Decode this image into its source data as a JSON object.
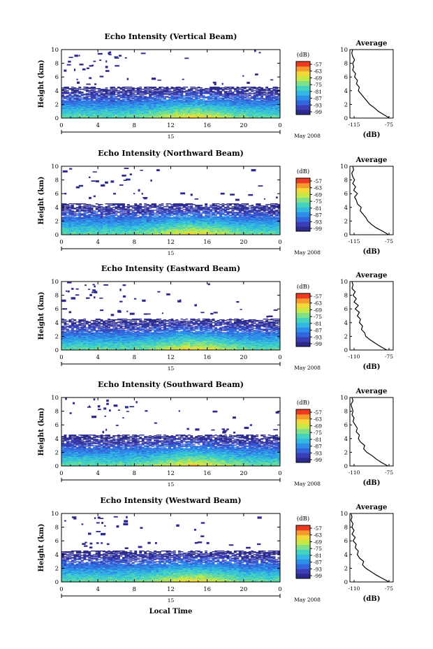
{
  "colors": {
    "scale": [
      "#2c2a8c",
      "#3a3fb5",
      "#3366dd",
      "#2f8fe8",
      "#33b8e0",
      "#45d3c0",
      "#7fe08a",
      "#c6e84a",
      "#f2d83a",
      "#f59a2e",
      "#ee3a22"
    ]
  },
  "shared": {
    "date_label": "May 2008",
    "day_label": "15",
    "x_label": "Local Time",
    "y_label": "Height (km)",
    "colorbar_unit": "(dB)",
    "avg_title": "Average",
    "avg_xlabel": "(dB)"
  },
  "chart_data": [
    {
      "type": "heatmap",
      "title": "Echo Intensity (Vertical Beam)",
      "xlabel": "Local Time",
      "ylabel": "Height (km)",
      "x_ticks": [
        "0",
        "4",
        "8",
        "12",
        "16",
        "20",
        "0"
      ],
      "xlim": [
        0,
        24
      ],
      "ylim": [
        0,
        10
      ],
      "y_ticks": [
        "0",
        "2",
        "4",
        "6",
        "8",
        "10"
      ],
      "colorbar_ticks": [
        "-57",
        "-63",
        "-69",
        "-75",
        "-81",
        "-87",
        "-93",
        "-99"
      ],
      "colorbar_unit": "(dB)",
      "average_profile": {
        "title": "Average",
        "xlabel": "(dB)",
        "x_ticks": [
          "-115",
          "-75"
        ],
        "xlim": [
          -118,
          -72
        ],
        "y_ticks": [
          "0",
          "2",
          "4",
          "6",
          "8",
          "10"
        ],
        "height_km": [
          0,
          0.5,
          1,
          1.5,
          2,
          2.5,
          3,
          3.5,
          4,
          4.5,
          5,
          5.5,
          6,
          6.5,
          7,
          7.5,
          8,
          8.5,
          9,
          9.5,
          10
        ],
        "db": [
          -76,
          -82,
          -88,
          -92,
          -97,
          -100,
          -103,
          -106,
          -109,
          -108,
          -111,
          -110,
          -113,
          -112,
          -115,
          -114,
          -115,
          -113,
          -115,
          -116,
          -115
        ]
      }
    },
    {
      "type": "heatmap",
      "title": "Echo Intensity (Northward Beam)",
      "xlabel": "Local Time",
      "ylabel": "Height (km)",
      "x_ticks": [
        "0",
        "4",
        "8",
        "12",
        "16",
        "20",
        "0"
      ],
      "xlim": [
        0,
        24
      ],
      "ylim": [
        0,
        10
      ],
      "y_ticks": [
        "0",
        "2",
        "4",
        "6",
        "8",
        "10"
      ],
      "colorbar_ticks": [
        "-57",
        "-63",
        "-69",
        "-75",
        "-81",
        "-87",
        "-93",
        "-99"
      ],
      "colorbar_unit": "(dB)",
      "average_profile": {
        "title": "Average",
        "xlabel": "(dB)",
        "x_ticks": [
          "-115",
          "-75"
        ],
        "xlim": [
          -118,
          -72
        ],
        "y_ticks": [
          "0",
          "2",
          "4",
          "6",
          "8",
          "10"
        ],
        "height_km": [
          0,
          0.5,
          1,
          1.5,
          2,
          2.5,
          3,
          3.5,
          4,
          4.5,
          5,
          5.5,
          6,
          6.5,
          7,
          7.5,
          8,
          8.5,
          9,
          9.5,
          10
        ],
        "db": [
          -77,
          -83,
          -90,
          -95,
          -99,
          -101,
          -104,
          -107,
          -106,
          -110,
          -111,
          -113,
          -110,
          -114,
          -112,
          -115,
          -113,
          -115,
          -116,
          -114,
          -115
        ]
      }
    },
    {
      "type": "heatmap",
      "title": "Echo Intensity (Eastward Beam)",
      "xlabel": "Local Time",
      "ylabel": "Height (km)",
      "x_ticks": [
        "0",
        "4",
        "8",
        "12",
        "16",
        "20",
        "0"
      ],
      "xlim": [
        0,
        24
      ],
      "ylim": [
        0,
        10
      ],
      "y_ticks": [
        "0",
        "2",
        "4",
        "6",
        "8",
        "10"
      ],
      "colorbar_ticks": [
        "-57",
        "-63",
        "-69",
        "-75",
        "-81",
        "-87",
        "-93",
        "-99"
      ],
      "colorbar_unit": "(dB)",
      "average_profile": {
        "title": "Average",
        "xlabel": "(dB)",
        "x_ticks": [
          "-110",
          "-75"
        ],
        "xlim": [
          -113,
          -72
        ],
        "y_ticks": [
          "0",
          "2",
          "4",
          "6",
          "8",
          "10"
        ],
        "height_km": [
          0,
          0.5,
          1,
          1.5,
          2,
          2.5,
          3,
          3.5,
          4,
          4.5,
          5,
          5.5,
          6,
          6.5,
          7,
          7.5,
          8,
          8.5,
          9,
          9.5,
          10
        ],
        "db": [
          -78,
          -84,
          -89,
          -94,
          -98,
          -99,
          -102,
          -101,
          -104,
          -103,
          -106,
          -104,
          -108,
          -105,
          -109,
          -107,
          -110,
          -108,
          -111,
          -110,
          -111
        ]
      }
    },
    {
      "type": "heatmap",
      "title": "Echo Intensity (Southward Beam)",
      "xlabel": "Local Time",
      "ylabel": "Height (km)",
      "x_ticks": [
        "0",
        "4",
        "8",
        "12",
        "16",
        "20",
        "0"
      ],
      "xlim": [
        0,
        24
      ],
      "ylim": [
        0,
        10
      ],
      "y_ticks": [
        "0",
        "2",
        "4",
        "6",
        "8",
        "10"
      ],
      "colorbar_ticks": [
        "-57",
        "-63",
        "-69",
        "-75",
        "-81",
        "-87",
        "-93",
        "-99"
      ],
      "colorbar_unit": "(dB)",
      "average_profile": {
        "title": "Average",
        "xlabel": "(dB)",
        "x_ticks": [
          "-110",
          "-75"
        ],
        "xlim": [
          -113,
          -72
        ],
        "y_ticks": [
          "0",
          "2",
          "4",
          "6",
          "8",
          "10"
        ],
        "height_km": [
          0,
          0.5,
          1,
          1.5,
          2,
          2.5,
          3,
          3.5,
          4,
          4.5,
          5,
          5.5,
          6,
          6.5,
          7,
          7.5,
          8,
          8.5,
          9,
          9.5,
          10
        ],
        "db": [
          -77,
          -83,
          -88,
          -92,
          -97,
          -100,
          -99,
          -103,
          -105,
          -104,
          -107,
          -106,
          -108,
          -110,
          -109,
          -111,
          -110,
          -111,
          -112,
          -110,
          -111
        ]
      }
    },
    {
      "type": "heatmap",
      "title": "Echo Intensity (Westward Beam)",
      "xlabel": "Local Time",
      "ylabel": "Height (km)",
      "x_ticks": [
        "0",
        "4",
        "8",
        "12",
        "16",
        "20",
        "0"
      ],
      "xlim": [
        0,
        24
      ],
      "ylim": [
        0,
        10
      ],
      "y_ticks": [
        "0",
        "2",
        "4",
        "6",
        "8",
        "10"
      ],
      "colorbar_ticks": [
        "-57",
        "-63",
        "-69",
        "-75",
        "-81",
        "-87",
        "-93",
        "-99"
      ],
      "colorbar_unit": "(dB)",
      "average_profile": {
        "title": "Average",
        "xlabel": "(dB)",
        "x_ticks": [
          "-110",
          "-75"
        ],
        "xlim": [
          -113,
          -72
        ],
        "y_ticks": [
          "0",
          "2",
          "4",
          "6",
          "8",
          "10"
        ],
        "height_km": [
          0,
          0.5,
          1,
          1.5,
          2,
          2.5,
          3,
          3.5,
          4,
          4.5,
          5,
          5.5,
          6,
          6.5,
          7,
          7.5,
          8,
          8.5,
          9,
          9.5,
          10
        ],
        "db": [
          -76,
          -82,
          -88,
          -93,
          -98,
          -101,
          -100,
          -104,
          -106,
          -105,
          -108,
          -107,
          -110,
          -108,
          -111,
          -109,
          -111,
          -110,
          -112,
          -111,
          -112
        ]
      }
    }
  ]
}
